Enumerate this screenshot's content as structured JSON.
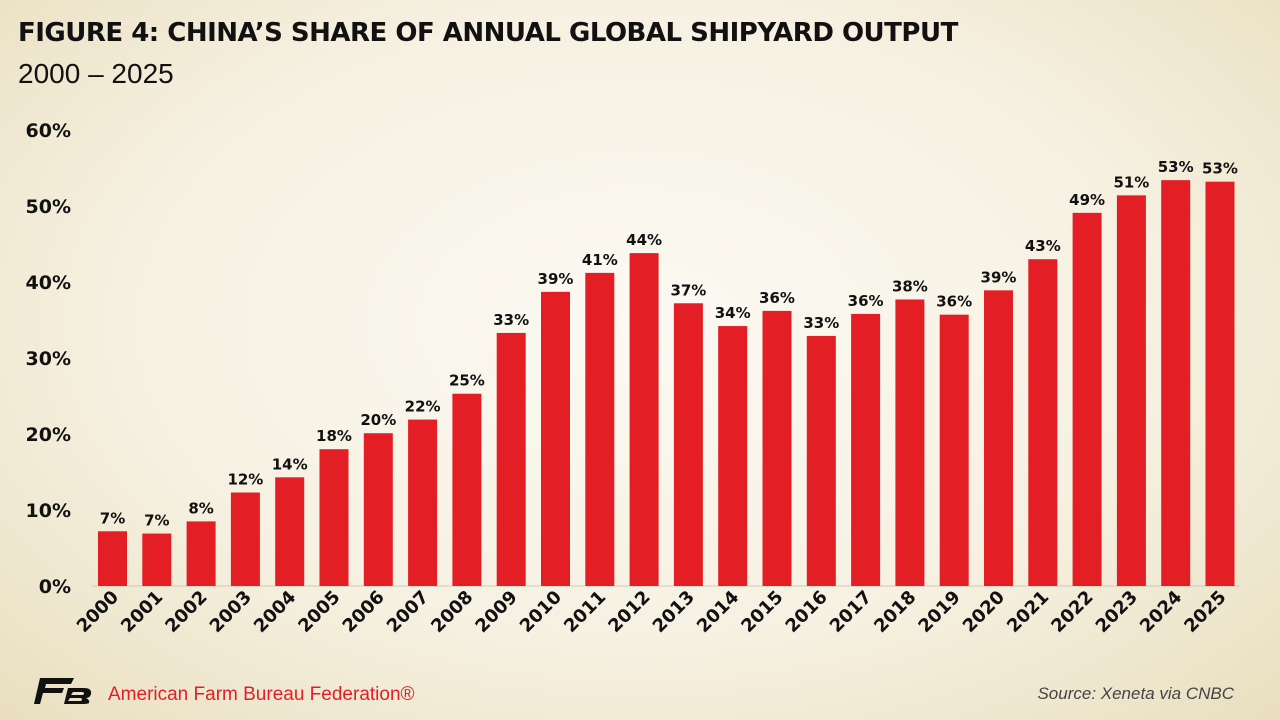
{
  "title": "FIGURE 4: CHINA’S SHARE OF ANNUAL GLOBAL SHIPYARD OUTPUT",
  "subtitle": "2000 – 2025",
  "footer": {
    "organization": "American Farm Bureau Federation®",
    "source": "Source: Xeneta via CNBC",
    "logo_icon": "fb-logo-icon"
  },
  "colors": {
    "bar": "#e31e24",
    "text": "#111111",
    "accent": "#e31e24"
  },
  "chart_data": {
    "type": "bar",
    "categories": [
      "2000",
      "2001",
      "2002",
      "2003",
      "2004",
      "2005",
      "2006",
      "2007",
      "2008",
      "2009",
      "2010",
      "2011",
      "2012",
      "2013",
      "2014",
      "2015",
      "2016",
      "2017",
      "2018",
      "2019",
      "2020",
      "2021",
      "2022",
      "2023",
      "2024",
      "2025"
    ],
    "values": [
      7.2,
      6.9,
      8.5,
      12.3,
      14.3,
      18.0,
      20.1,
      21.9,
      25.3,
      33.3,
      38.7,
      41.2,
      43.8,
      37.2,
      34.2,
      36.2,
      32.9,
      35.8,
      37.7,
      35.7,
      38.9,
      43.0,
      49.1,
      51.4,
      53.4,
      53.2
    ],
    "data_labels": [
      "7%",
      "7%",
      "8%",
      "12%",
      "14%",
      "18%",
      "20%",
      "22%",
      "25%",
      "33%",
      "39%",
      "41%",
      "44%",
      "37%",
      "34%",
      "36%",
      "33%",
      "36%",
      "38%",
      "36%",
      "39%",
      "43%",
      "49%",
      "51%",
      "53%",
      "53%"
    ],
    "y_ticks": [
      "0%",
      "10%",
      "20%",
      "30%",
      "40%",
      "50%",
      "60%"
    ],
    "ylim": [
      0,
      60
    ],
    "xlabel": "",
    "ylabel": "",
    "grid": false,
    "legend": "none"
  }
}
